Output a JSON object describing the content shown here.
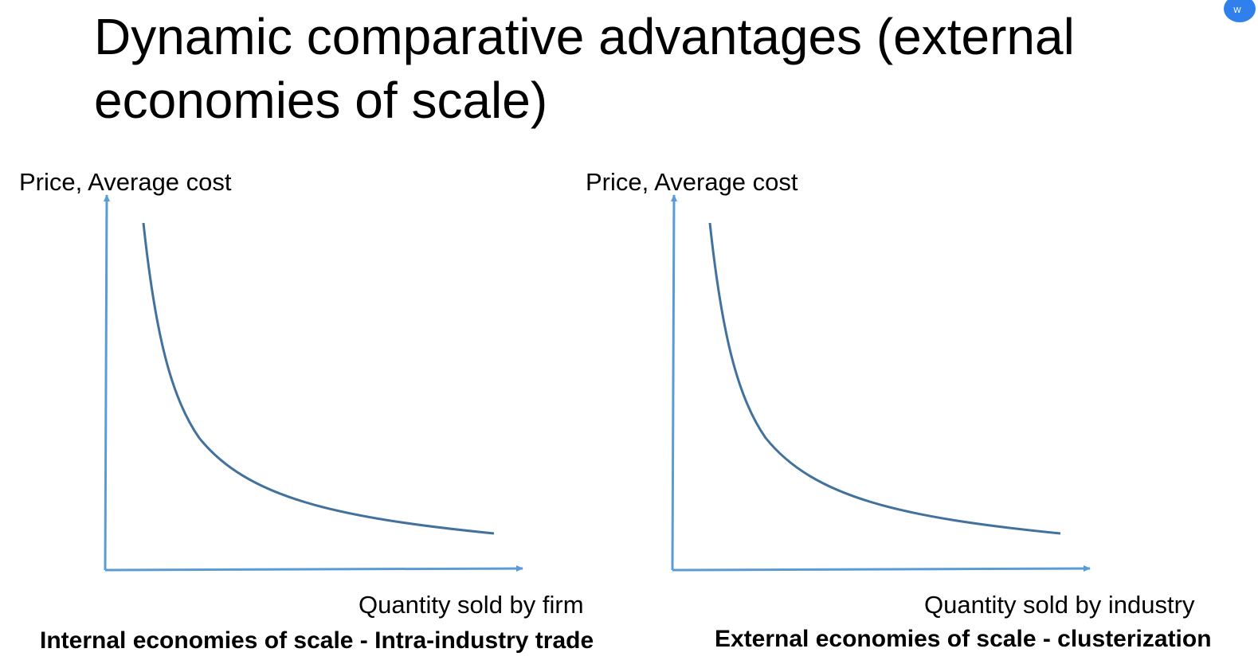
{
  "slide": {
    "title": "Dynamic comparative advantages (external economies of scale)"
  },
  "colors": {
    "axis": "#5b9bd5",
    "curve": "#41719c",
    "badge": "#2f80ed"
  },
  "corner_badge": {
    "icon": "translate-icon",
    "text": "W"
  },
  "diagrams": [
    {
      "y_axis_label": "Price, Average cost",
      "x_axis_label": "Quantity sold by firm",
      "caption": "Internal economies of scale - Intra-industry trade",
      "curve": "downward-sloping average cost curve"
    },
    {
      "y_axis_label": "Price, Average cost",
      "x_axis_label": "Quantity sold by industry",
      "caption": "External economies of scale - clusterization",
      "curve": "downward-sloping average cost curve"
    }
  ]
}
